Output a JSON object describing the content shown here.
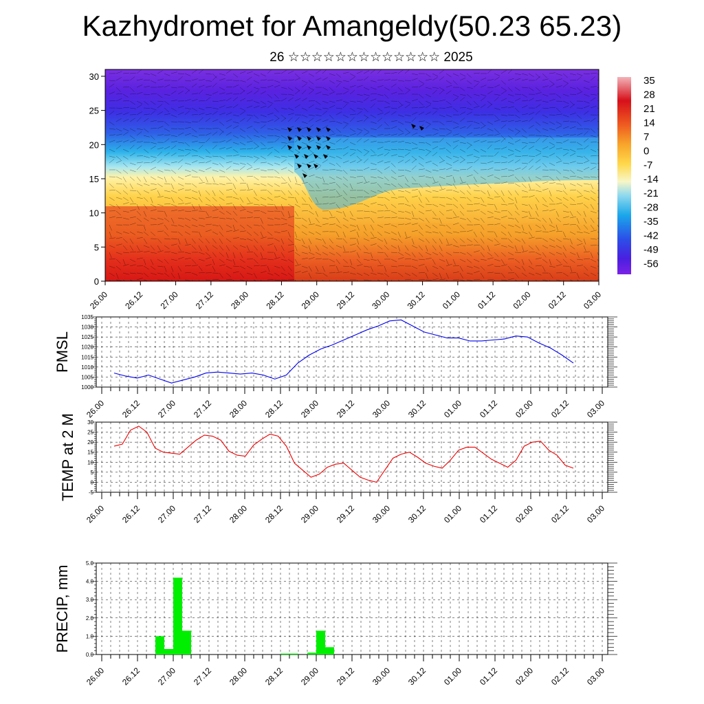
{
  "title": "Kazhydromet for Amangeldy(50.23 65.23)",
  "subtitle": "26 ☆☆☆☆☆☆☆☆☆☆☆☆☆ 2025",
  "chart_data": [
    {
      "type": "heatmap",
      "title": "Kazhydromet for Amangeldy(50.23 65.23)",
      "description_units": "temperature by time and height level with wind barbs",
      "x_tick_labels": [
        "26.00",
        "26.12",
        "27.00",
        "27.12",
        "28.00",
        "28.12",
        "29.00",
        "29.12",
        "30.00",
        "30.12",
        "01.00",
        "01.12",
        "02.00",
        "02.12",
        "03.00"
      ],
      "y_ticks": [
        0,
        5,
        10,
        15,
        20,
        25,
        30
      ],
      "ylim": [
        0,
        31
      ],
      "colorbar_labels": [
        "35",
        "28",
        "21",
        "14",
        "7",
        "0",
        "-7",
        "-14",
        "-21",
        "-28",
        "-35",
        "-42",
        "-49",
        "-56"
      ],
      "colorbar_range": [
        -60,
        38
      ],
      "colors": {
        "cold": "#4b1fe0",
        "mid": "#ffe98a",
        "warm": "#d9101c"
      }
    },
    {
      "type": "line",
      "ylabel": "PMSL",
      "ylim": [
        1000,
        1035
      ],
      "y_ticks": [
        1000,
        1005,
        1010,
        1015,
        1020,
        1025,
        1030,
        1035
      ],
      "x_tick_labels": [
        "26.00",
        "26.12",
        "27.00",
        "27.12",
        "28.00",
        "28.12",
        "29.00",
        "29.12",
        "30.00",
        "30.12",
        "01.00",
        "01.12",
        "02.00",
        "02.12",
        "03.00"
      ],
      "color": "#0000ee",
      "series": [
        {
          "values": [
            1007,
            1005.5,
            1004.5,
            1006,
            1004,
            1002,
            1003.5,
            1005,
            1007,
            1007.5,
            1007,
            1006.5,
            1007,
            1006,
            1004,
            1006,
            1012,
            1016,
            1019,
            1021,
            1023.5,
            1026,
            1028.5,
            1030.5,
            1033,
            1033.5,
            1030.5,
            1027.5,
            1026,
            1024.5,
            1024.5,
            1023,
            1023,
            1023.5,
            1024,
            1025.5,
            1025,
            1022,
            1019.5,
            1016,
            1012
          ]
        }
      ]
    },
    {
      "type": "line",
      "ylabel": "TEMP at 2 M",
      "ylim": [
        -5,
        30
      ],
      "y_ticks": [
        -5,
        0,
        5,
        10,
        15,
        20,
        25,
        30
      ],
      "x_tick_labels": [
        "26.00",
        "26.12",
        "27.00",
        "27.12",
        "28.00",
        "28.12",
        "29.00",
        "29.12",
        "30.00",
        "30.12",
        "01.00",
        "01.12",
        "02.00",
        "02.12",
        "03.00"
      ],
      "color": "#ee0000",
      "series": [
        {
          "values": [
            18,
            19,
            26,
            28,
            25,
            17,
            15,
            14.5,
            14,
            17.5,
            21,
            23.5,
            23,
            21,
            15.5,
            13.5,
            13,
            18.5,
            21.5,
            24,
            23,
            18,
            9.5,
            6,
            2.5,
            4,
            7.5,
            9,
            9.5,
            6,
            2.5,
            1,
            0,
            6,
            12,
            14,
            15,
            12.5,
            9.5,
            8,
            7,
            11,
            16,
            17.5,
            17.5,
            14.5,
            11.5,
            9.5,
            7.5,
            11,
            18,
            20,
            20.5,
            16,
            13.5,
            8.5,
            7
          ]
        }
      ]
    },
    {
      "type": "bar",
      "ylabel": "PRECIP, mm",
      "ylim": [
        0,
        5
      ],
      "y_tick_labels": [
        "0.0",
        "1.0",
        "2.0",
        "3.0",
        "4.0",
        "5.0"
      ],
      "x_tick_labels": [
        "26.00",
        "26.12",
        "27.00",
        "27.12",
        "28.00",
        "28.12",
        "29.00",
        "29.12",
        "30.00",
        "30.12",
        "01.00",
        "01.12",
        "02.00",
        "02.12",
        "03.00"
      ],
      "color": "#00ee00",
      "values": [
        0,
        0,
        0,
        0,
        0,
        0,
        1.0,
        0.3,
        4.2,
        1.3,
        0,
        0,
        0,
        0,
        0,
        0,
        0,
        0,
        0,
        0,
        0.05,
        0.05,
        0,
        0.1,
        1.3,
        0.4,
        0,
        0,
        0,
        0,
        0,
        0,
        0,
        0,
        0,
        0,
        0,
        0,
        0,
        0,
        0,
        0,
        0,
        0,
        0,
        0,
        0,
        0,
        0,
        0,
        0,
        0,
        0,
        0,
        0,
        0,
        0,
        0,
        0,
        0,
        0,
        0,
        0,
        0,
        0,
        0
      ]
    }
  ]
}
